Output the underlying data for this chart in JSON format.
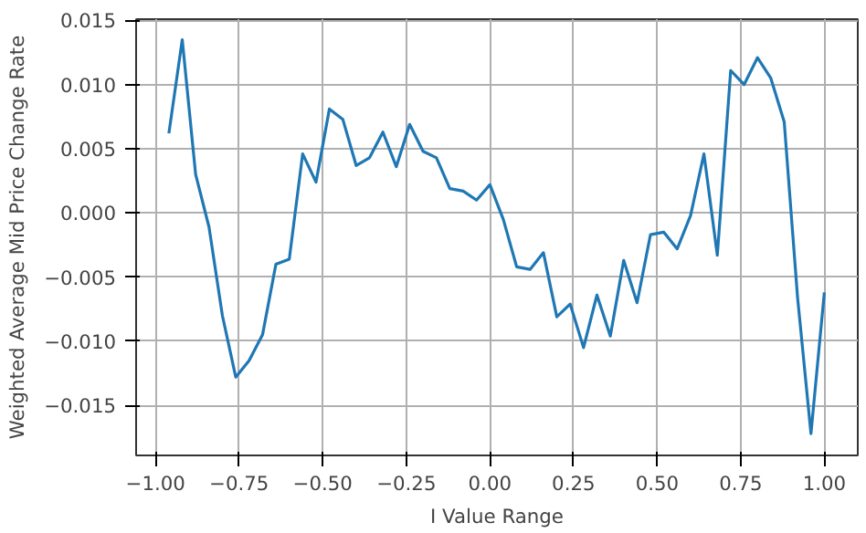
{
  "chart_data": {
    "type": "line",
    "xlabel": "I Value Range",
    "ylabel": "Weighted Average Mid Price Change Rate",
    "x": [
      -0.96,
      -0.92,
      -0.88,
      -0.84,
      -0.8,
      -0.76,
      -0.72,
      -0.68,
      -0.64,
      -0.6,
      -0.56,
      -0.52,
      -0.48,
      -0.44,
      -0.4,
      -0.36,
      -0.32,
      -0.28,
      -0.24,
      -0.2,
      -0.16,
      -0.12,
      -0.08,
      -0.04,
      0.0,
      0.04,
      0.08,
      0.12,
      0.16,
      0.2,
      0.24,
      0.28,
      0.32,
      0.36,
      0.4,
      0.44,
      0.48,
      0.52,
      0.56,
      0.6,
      0.64,
      0.68,
      0.72,
      0.76,
      0.8,
      0.84,
      0.88,
      0.92,
      0.96,
      1.0
    ],
    "series": [
      {
        "color": "#1f77b4",
        "values": [
          0.0062,
          0.0135,
          0.003,
          -0.0011,
          -0.008,
          -0.0128,
          -0.0115,
          -0.0095,
          -0.004,
          -0.0036,
          0.0046,
          0.0024,
          0.0081,
          0.0073,
          0.0037,
          0.0043,
          0.0063,
          0.0036,
          0.0069,
          0.0048,
          0.0043,
          0.0019,
          0.0017,
          0.001,
          0.0022,
          -0.0005,
          -0.0042,
          -0.0044,
          -0.0031,
          -0.0081,
          -0.0071,
          -0.0105,
          -0.0064,
          -0.0096,
          -0.0037,
          -0.007,
          -0.0017,
          -0.0015,
          -0.0028,
          -0.0002,
          0.0046,
          -0.0033,
          0.0111,
          0.01,
          0.0121,
          0.0105,
          0.0071,
          -0.0066,
          -0.0172,
          -0.0062
        ]
      }
    ],
    "xlim": [
      -1.058,
      1.1
    ],
    "ylim": [
      -0.0189,
      0.0151
    ],
    "xticks": [
      {
        "value": -1.0,
        "label": "−1.00"
      },
      {
        "value": -0.75,
        "label": "−0.75"
      },
      {
        "value": -0.5,
        "label": "−0.50"
      },
      {
        "value": -0.25,
        "label": "−0.25"
      },
      {
        "value": 0.0,
        "label": "0.00"
      },
      {
        "value": 0.25,
        "label": "0.25"
      },
      {
        "value": 0.5,
        "label": "0.50"
      },
      {
        "value": 0.75,
        "label": "0.75"
      },
      {
        "value": 1.0,
        "label": "1.00"
      }
    ],
    "yticks": [
      {
        "value": -0.015,
        "label": "−0.015"
      },
      {
        "value": -0.01,
        "label": "−0.010"
      },
      {
        "value": -0.005,
        "label": "−0.005"
      },
      {
        "value": 0.0,
        "label": "0.000"
      },
      {
        "value": 0.005,
        "label": "0.005"
      },
      {
        "value": 0.01,
        "label": "0.010"
      },
      {
        "value": 0.015,
        "label": "0.015"
      }
    ],
    "grid": true,
    "marker": "none",
    "line_style": "solid"
  }
}
